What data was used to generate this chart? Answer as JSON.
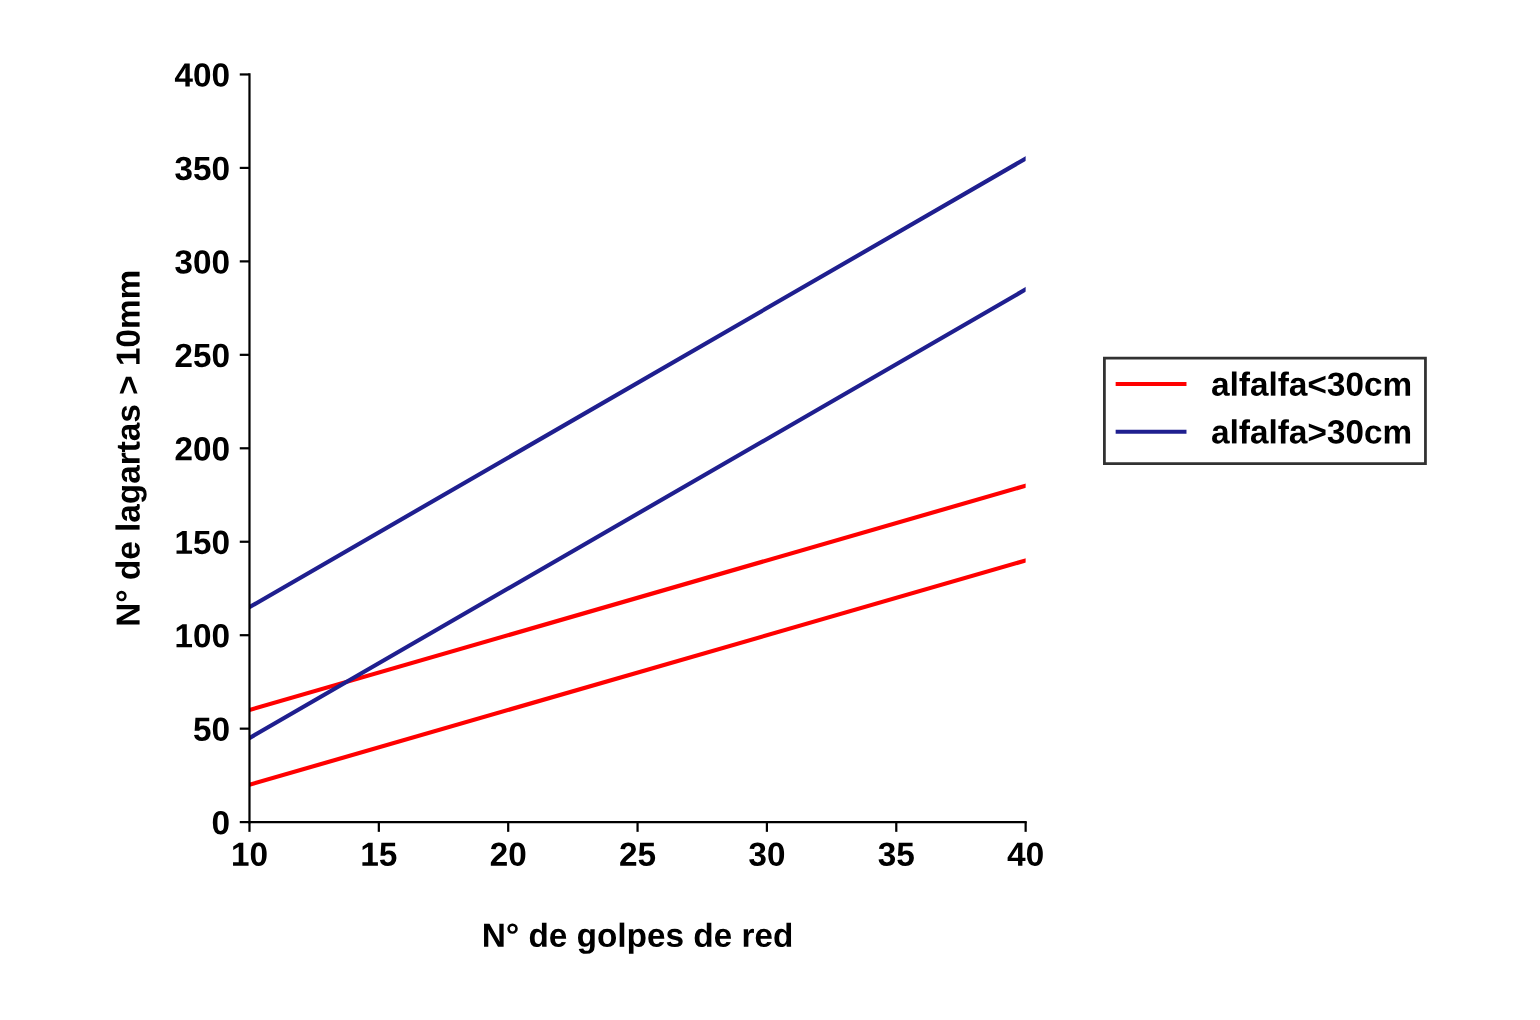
{
  "chart_data": {
    "type": "line",
    "xlabel": "N° de golpes de red",
    "ylabel": "N° de lagartas > 10mm",
    "x": [
      10,
      40
    ],
    "series": [
      {
        "name": "alfalfa<30cm",
        "color": "#ff0000",
        "values": [
          60,
          180
        ]
      },
      {
        "color": "#ff0000",
        "values": [
          20,
          140
        ]
      },
      {
        "name": "alfalfa>30cm",
        "color": "#1f1f8f",
        "values": [
          115,
          355
        ]
      },
      {
        "color": "#1f1f8f",
        "values": [
          45,
          285
        ]
      }
    ],
    "xlim": [
      10,
      40
    ],
    "xticks": [
      10,
      15,
      20,
      25,
      30,
      35,
      40
    ],
    "ylim": [
      0,
      400
    ],
    "yticks": [
      0,
      50,
      100,
      150,
      200,
      250,
      300,
      350,
      400
    ],
    "grid": false,
    "legend": "right",
    "marker": "none",
    "line_style": "solid"
  }
}
